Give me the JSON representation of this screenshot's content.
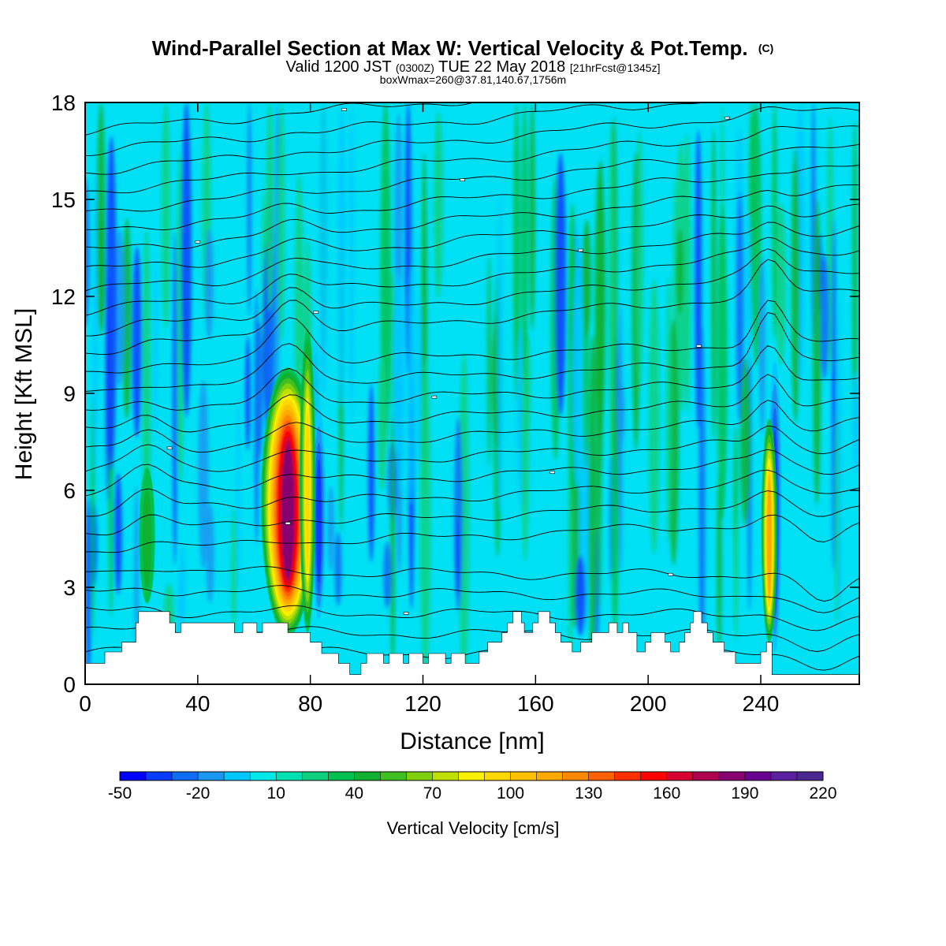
{
  "chart_data": {
    "type": "heatmap",
    "title": "Wind-Parallel Section at Max W: Vertical Velocity & Pot.Temp.",
    "title_mark": "(C)",
    "subtitle": {
      "pre": "Valid 1200 JST",
      "utc": "(0300Z)",
      "date": "TUE 22 May 2018",
      "fcst": "[21hrFcst@1345z]"
    },
    "info": "boxWmax=260@37.81,140.67,1756m",
    "xlabel": "Distance [nm]",
    "ylabel": "Height [Kft MSL]",
    "xlim": [
      0,
      275
    ],
    "ylim": [
      0,
      18
    ],
    "x_ticks": [
      0,
      40,
      80,
      120,
      160,
      200,
      240
    ],
    "y_ticks": [
      0,
      3,
      6,
      9,
      12,
      15,
      18
    ],
    "grid": false,
    "legend_position": "bottom",
    "colorbar": {
      "label": "Vertical Velocity [cm/s]",
      "tick_labels": [
        "-50",
        "-20",
        "10",
        "40",
        "70",
        "100",
        "130",
        "160",
        "190",
        "220"
      ],
      "min": -50,
      "max": 220,
      "step": 10,
      "colors": [
        "#0000ff",
        "#0a3cff",
        "#0f6cf5",
        "#1896f0",
        "#00c8ff",
        "#00e8e8",
        "#00e0b0",
        "#10d080",
        "#00c050",
        "#10b030",
        "#40c020",
        "#80d010",
        "#c0e000",
        "#f8f000",
        "#ffd800",
        "#ffc000",
        "#ffa800",
        "#ff8800",
        "#ff6000",
        "#ff3000",
        "#ff0000",
        "#d80030",
        "#b00050",
        "#880070",
        "#6a0090",
        "#5a20a0",
        "#4a2890"
      ]
    },
    "features": {
      "background_color": "#00e0f4",
      "terrain_color": "#ffffff",
      "updrafts": [
        {
          "x": 72,
          "z_bottom": 1.5,
          "z_top": 9.8,
          "w_max": 180
        },
        {
          "x": 79,
          "z_bottom": 1.6,
          "z_top": 11.0,
          "w_max": 90
        },
        {
          "x": 243,
          "z_bottom": 1.3,
          "z_top": 8.2,
          "w_max": 110
        },
        {
          "x": 22,
          "z_bottom": 2.5,
          "z_top": 6.7,
          "w_max": 40
        }
      ],
      "downdrafts": [
        {
          "x": 83,
          "z_bottom": 2.0,
          "z_top": 8.5,
          "w_min": -40
        },
        {
          "x": 245,
          "z_bottom": 1.0,
          "z_top": 10.0,
          "w_min": -40
        }
      ]
    },
    "isentrope_label_color": "#ffffff",
    "terrain_profile": [
      [
        0,
        0.65
      ],
      [
        7,
        0.65
      ],
      [
        7,
        1.0
      ],
      [
        13,
        1.0
      ],
      [
        13,
        1.3
      ],
      [
        18,
        1.3
      ],
      [
        18,
        1.9
      ],
      [
        19,
        1.9
      ],
      [
        19,
        2.25
      ],
      [
        30,
        2.25
      ],
      [
        30,
        1.9
      ],
      [
        32,
        1.9
      ],
      [
        32,
        1.6
      ],
      [
        34,
        1.6
      ],
      [
        34,
        1.9
      ],
      [
        53,
        1.9
      ],
      [
        53,
        1.6
      ],
      [
        56,
        1.6
      ],
      [
        56,
        1.9
      ],
      [
        61,
        1.9
      ],
      [
        61,
        1.6
      ],
      [
        63,
        1.6
      ],
      [
        63,
        1.9
      ],
      [
        72,
        1.9
      ],
      [
        72,
        1.6
      ],
      [
        80,
        1.6
      ],
      [
        80,
        1.3
      ],
      [
        84,
        1.3
      ],
      [
        84,
        0.95
      ],
      [
        90,
        0.95
      ],
      [
        90,
        0.65
      ],
      [
        94,
        0.65
      ],
      [
        94,
        0.3
      ],
      [
        98,
        0.3
      ],
      [
        98,
        0.65
      ],
      [
        100,
        0.65
      ],
      [
        100,
        0.95
      ],
      [
        106,
        0.95
      ],
      [
        106,
        0.65
      ],
      [
        108,
        0.65
      ],
      [
        108,
        0.95
      ],
      [
        113,
        0.95
      ],
      [
        113,
        0.65
      ],
      [
        115,
        0.65
      ],
      [
        115,
        0.95
      ],
      [
        120,
        0.95
      ],
      [
        120,
        0.65
      ],
      [
        122,
        0.65
      ],
      [
        122,
        0.95
      ],
      [
        128,
        0.95
      ],
      [
        128,
        0.65
      ],
      [
        130,
        0.65
      ],
      [
        130,
        0.95
      ],
      [
        135,
        0.95
      ],
      [
        135,
        0.65
      ],
      [
        140,
        0.65
      ],
      [
        140,
        1.0
      ],
      [
        143,
        1.0
      ],
      [
        143,
        1.3
      ],
      [
        148,
        1.3
      ],
      [
        148,
        1.6
      ],
      [
        150,
        1.6
      ],
      [
        150,
        1.9
      ],
      [
        152,
        1.9
      ],
      [
        152,
        2.25
      ],
      [
        155,
        2.25
      ],
      [
        155,
        1.9
      ],
      [
        156,
        1.9
      ],
      [
        156,
        1.6
      ],
      [
        159,
        1.6
      ],
      [
        159,
        1.9
      ],
      [
        161,
        1.9
      ],
      [
        161,
        2.25
      ],
      [
        165,
        2.25
      ],
      [
        165,
        1.9
      ],
      [
        167,
        1.9
      ],
      [
        167,
        1.6
      ],
      [
        169,
        1.6
      ],
      [
        169,
        1.3
      ],
      [
        173,
        1.3
      ],
      [
        173,
        1.0
      ],
      [
        176,
        1.0
      ],
      [
        176,
        1.3
      ],
      [
        180,
        1.3
      ],
      [
        180,
        1.6
      ],
      [
        186,
        1.6
      ],
      [
        186,
        1.9
      ],
      [
        189,
        1.9
      ],
      [
        189,
        1.6
      ],
      [
        191,
        1.6
      ],
      [
        191,
        1.9
      ],
      [
        193,
        1.9
      ],
      [
        193,
        1.6
      ],
      [
        196,
        1.6
      ],
      [
        196,
        1.0
      ],
      [
        199,
        1.0
      ],
      [
        199,
        1.3
      ],
      [
        201,
        1.3
      ],
      [
        201,
        1.6
      ],
      [
        206,
        1.6
      ],
      [
        206,
        1.3
      ],
      [
        208,
        1.3
      ],
      [
        208,
        1.0
      ],
      [
        211,
        1.0
      ],
      [
        211,
        1.3
      ],
      [
        213,
        1.3
      ],
      [
        213,
        1.6
      ],
      [
        215,
        1.6
      ],
      [
        215,
        1.9
      ],
      [
        216,
        1.9
      ],
      [
        216,
        2.25
      ],
      [
        219,
        2.25
      ],
      [
        219,
        1.9
      ],
      [
        221,
        1.9
      ],
      [
        221,
        1.6
      ],
      [
        223,
        1.6
      ],
      [
        223,
        1.3
      ],
      [
        227,
        1.3
      ],
      [
        227,
        1.0
      ],
      [
        231,
        1.0
      ],
      [
        231,
        0.65
      ],
      [
        240,
        0.65
      ],
      [
        240,
        1.0
      ],
      [
        242,
        1.0
      ],
      [
        242,
        1.3
      ],
      [
        244,
        1.3
      ],
      [
        244,
        0.3
      ],
      [
        275,
        0.3
      ]
    ]
  }
}
